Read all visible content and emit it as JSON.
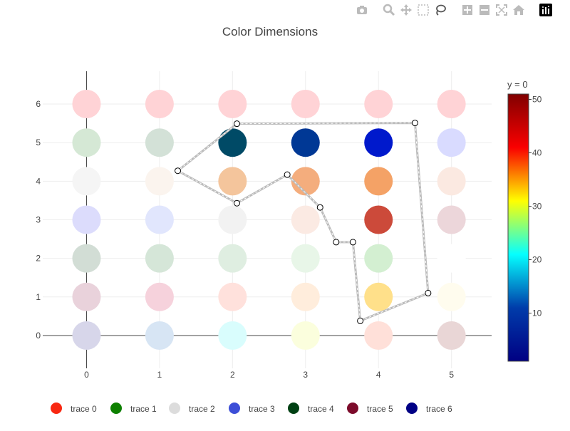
{
  "modebar": {
    "buttons": [
      {
        "name": "camera-icon",
        "glyph": "camera"
      },
      {
        "name": "zoom-icon",
        "glyph": "zoom"
      },
      {
        "name": "pan-icon",
        "glyph": "pan"
      },
      {
        "name": "box-select-icon",
        "glyph": "box"
      },
      {
        "name": "lasso-select-icon",
        "glyph": "lasso"
      },
      {
        "name": "zoom-in-icon",
        "glyph": "plus"
      },
      {
        "name": "zoom-out-icon",
        "glyph": "minus"
      },
      {
        "name": "autoscale-icon",
        "glyph": "autoscale"
      },
      {
        "name": "reset-axes-icon",
        "glyph": "home"
      },
      {
        "name": "plotly-logo-icon",
        "glyph": "logo"
      }
    ]
  },
  "chart_data": {
    "type": "scatter",
    "title": "Color Dimensions",
    "xlabel": "",
    "ylabel": "",
    "xlim": [
      -0.6,
      5.55
    ],
    "ylim": [
      -0.85,
      6.85
    ],
    "xticks": [
      0,
      1,
      2,
      3,
      4,
      5
    ],
    "yticks": [
      0,
      1,
      2,
      3,
      4,
      5,
      6
    ],
    "grid": true,
    "legend_position": "bottom",
    "colorbar": {
      "title": "y = 0",
      "ticks": [
        10,
        20,
        30,
        40,
        50
      ],
      "range": [
        1,
        51
      ],
      "colorscale": [
        "#000083",
        "#003caa",
        "#05ffff",
        "#ffff00",
        "#fa0000",
        "#800000"
      ]
    },
    "series": [
      {
        "name": "trace 0",
        "color": "#f82811",
        "x": [
          0,
          1,
          2,
          3,
          4,
          5
        ],
        "y": [
          6,
          6,
          6,
          6,
          6,
          6
        ],
        "point_colors": [
          "#ffd3d6",
          "#ffd3d6",
          "#ffd3d6",
          "#ffd3d6",
          "#ffd3d6",
          "#ffd3d6"
        ]
      },
      {
        "name": "trace 1",
        "color": "#0e8000",
        "x": [
          0,
          1,
          2,
          3,
          4,
          5
        ],
        "y": [
          5,
          5,
          5,
          5,
          5,
          5
        ],
        "point_colors": [
          "#d5e8d5",
          "#d3e1d7",
          "#004a66",
          "#003895",
          "#0019cc",
          "#d9dbff"
        ]
      },
      {
        "name": "trace 2",
        "color": "#dcdcdc",
        "x": [
          0,
          1,
          2,
          3,
          4,
          5
        ],
        "y": [
          4,
          4,
          4,
          4,
          4,
          4
        ],
        "point_colors": [
          "#f5f5f5",
          "#fbf4ee",
          "#f4c59c",
          "#f4ad7d",
          "#f4a266",
          "#fbe9e1"
        ]
      },
      {
        "name": "trace 3",
        "color": "#3c4ed7",
        "x": [
          0,
          1,
          2,
          3,
          4,
          5
        ],
        "y": [
          3,
          3,
          3,
          3,
          3,
          3
        ],
        "point_colors": [
          "#dcdcfc",
          "#e1e6fd",
          "#f2f2f2",
          "#fbeae3",
          "#cc4a3a",
          "#ecd6da"
        ]
      },
      {
        "name": "trace 4",
        "color": "#004013",
        "x": [
          0,
          1,
          2,
          3,
          4,
          5
        ],
        "y": [
          2,
          2,
          2,
          2,
          2,
          2
        ],
        "point_colors": [
          "#d2ddd5",
          "#d5e6d8",
          "#dfeee1",
          "#e8f6e8",
          "#d3efd1",
          "#ffffff"
        ]
      },
      {
        "name": "trace 5",
        "color": "#7c0b2b",
        "x": [
          0,
          1,
          2,
          3,
          4,
          5
        ],
        "y": [
          1,
          1,
          1,
          1,
          1,
          1
        ],
        "point_colors": [
          "#e9d2db",
          "#f6d2dc",
          "#ffe1dc",
          "#ffeddc",
          "#ffe08a",
          "#fffcee"
        ]
      },
      {
        "name": "trace 6",
        "color": "#000085",
        "x": [
          0,
          1,
          2,
          3,
          4,
          5
        ],
        "y": [
          0,
          0,
          0,
          0,
          0,
          0
        ],
        "point_colors": [
          "#d7d6ea",
          "#d7e5f4",
          "#d9fdfd",
          "#fbfedd",
          "#ffe0d9",
          "#e9d6d6"
        ]
      }
    ],
    "lasso_path": {
      "x": [
        2.06,
        4.5,
        4.68,
        3.75,
        3.65,
        3.42,
        3.2,
        2.75,
        2.06,
        1.25,
        2.06
      ],
      "y": [
        5.49,
        5.51,
        1.1,
        0.38,
        2.42,
        2.42,
        3.32,
        4.17,
        3.43,
        4.27,
        5.49
      ]
    }
  }
}
